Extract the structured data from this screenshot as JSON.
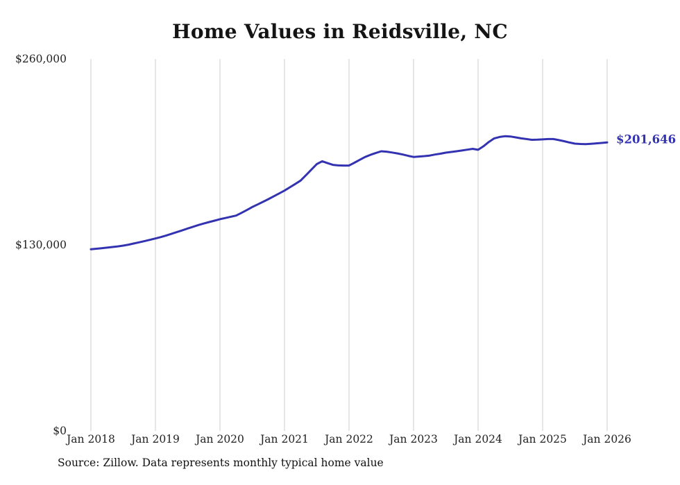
{
  "page": {
    "source_note": "Source: Zillow. Data represents monthly typical home value"
  },
  "colors": {
    "line": "#3333b2",
    "end_label": "#3333b2",
    "grid": "#cccccc",
    "text": "#222222"
  },
  "chart_data": {
    "type": "line",
    "title": "Home Values in Reidsville, NC",
    "xlabel": "",
    "ylabel": "",
    "ylim": [
      0,
      260000
    ],
    "grid": "vertical-only",
    "legend": "none",
    "y_ticks": [
      {
        "value": 260000,
        "label": "$260,000"
      },
      {
        "value": 130000,
        "label": "$130,000"
      },
      {
        "value": 0,
        "label": "$0"
      }
    ],
    "x_ticks": [
      "Jan 2018",
      "Jan 2019",
      "Jan 2020",
      "Jan 2021",
      "Jan 2022",
      "Jan 2023",
      "Jan 2024",
      "Jan 2025",
      "Jan 2026"
    ],
    "end_label": "$201,646",
    "end_value": 201646,
    "series": [
      {
        "name": "Typical home value",
        "x_start": "Jan 2018",
        "x_end": "Jan 2026",
        "frequency": "monthly",
        "values": [
          127000,
          127350,
          127700,
          128100,
          128550,
          129000,
          129500,
          130200,
          131000,
          131850,
          132700,
          133600,
          134500,
          135500,
          136600,
          137800,
          139000,
          140250,
          141500,
          142700,
          143900,
          145000,
          146000,
          147000,
          148000,
          148800,
          149700,
          150500,
          152400,
          154400,
          156500,
          158300,
          160100,
          162000,
          164000,
          166000,
          168000,
          170300,
          172600,
          175000,
          178800,
          182700,
          186500,
          188500,
          187200,
          186000,
          185600,
          185500,
          185500,
          187500,
          189500,
          191500,
          193000,
          194300,
          195500,
          195200,
          194600,
          194000,
          193200,
          192300,
          191500,
          191800,
          192100,
          192500,
          193200,
          193800,
          194500,
          195000,
          195500,
          196000,
          196600,
          197200,
          196500,
          199000,
          202000,
          204500,
          205500,
          206000,
          205800,
          205200,
          204500,
          204000,
          203500,
          203600,
          203800,
          204000,
          204000,
          203300,
          202500,
          201600,
          200800,
          200600,
          200500,
          200700,
          201000,
          201300,
          201646
        ]
      }
    ]
  }
}
